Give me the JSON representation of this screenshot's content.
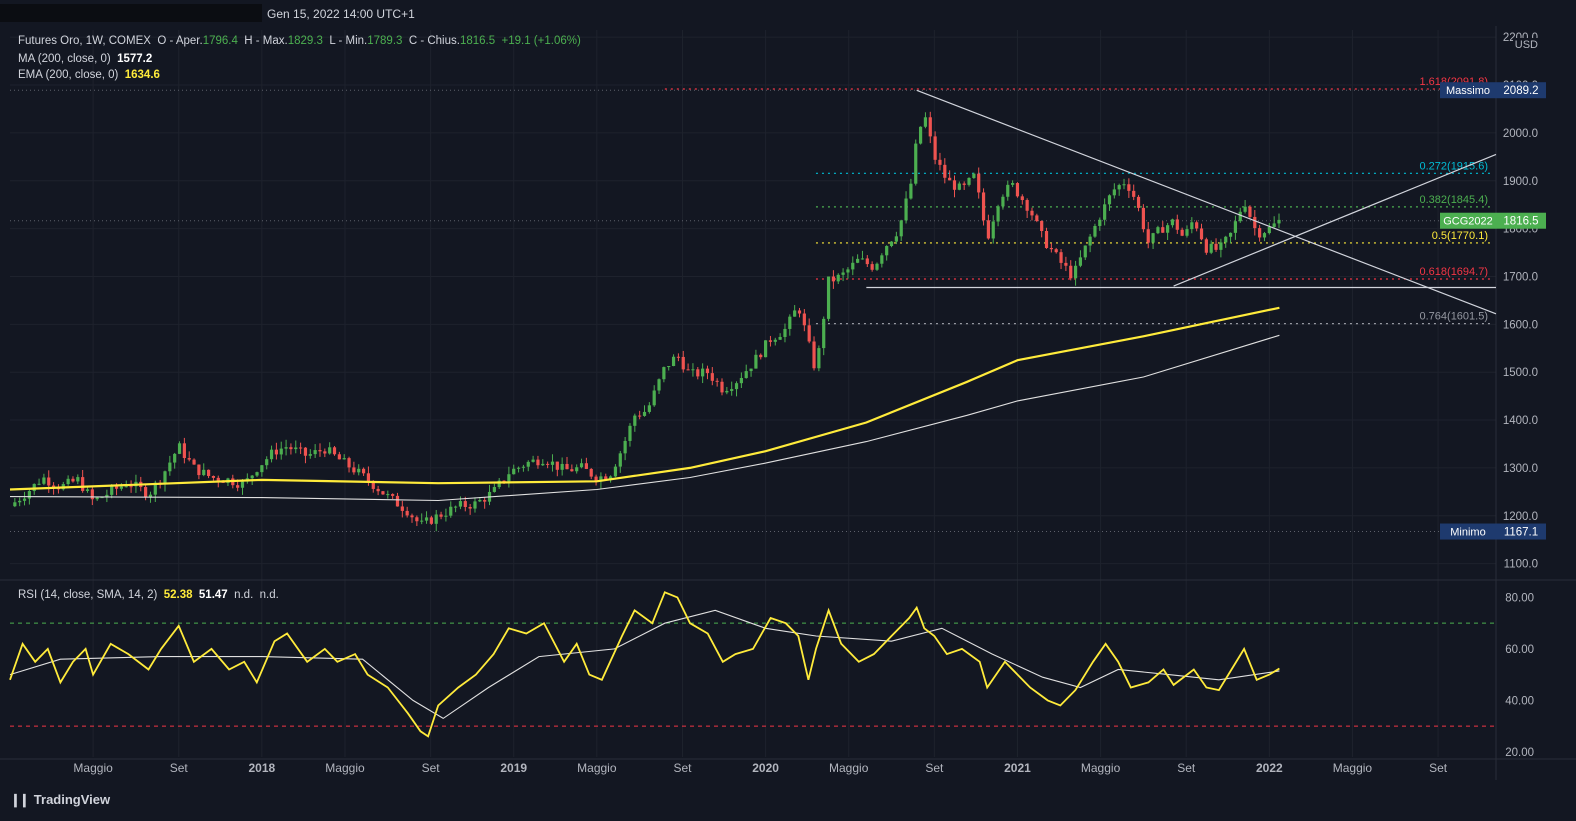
{
  "header": {
    "date": "Gen 15, 2022 14:00 UTC+1"
  },
  "legend": {
    "symbol": "Futures Oro, 1W, COMEX",
    "o_label": "O - Aper.",
    "o_value": "1796.4",
    "h_label": "H - Max.",
    "h_value": "1829.3",
    "l_label": "L - Min.",
    "l_value": "1789.3",
    "c_label": "C - Chius.",
    "c_value": "1816.5",
    "change": "+19.1 (+1.06%)",
    "ma_label": "MA (200, close, 0)",
    "ma_value": "1577.2",
    "ema_label": "EMA (200, close, 0)",
    "ema_value": "1634.6"
  },
  "rsi_legend": {
    "label": "RSI (14, close, SMA, 14, 2)",
    "v1": "52.38",
    "v2": "51.47",
    "v3": "n.d.",
    "v4": "n.d."
  },
  "brand": "TradingView",
  "colors": {
    "bg": "#131722",
    "up": "#4caf50",
    "down": "#ef5350",
    "ema": "#ffeb3b",
    "ma": "#e0e0e0",
    "rsi": "#ffeb3b",
    "grid": "#1e222d"
  },
  "chart_data": [
    {
      "type": "candlestick",
      "title": "Futures Oro, 1W, COMEX",
      "y_axis": {
        "unit": "USD",
        "ticks": [
          "1100.0",
          "1200.0",
          "1300.0",
          "1400.0",
          "1500.0",
          "1600.0",
          "1700.0",
          "1800.0",
          "1900.0",
          "2000.0",
          "2100.0",
          "2200.0"
        ],
        "ylim": [
          1070,
          2215
        ]
      },
      "x_axis": {
        "ticks": [
          {
            "label": "Maggio",
            "t": 2017.33
          },
          {
            "label": "Set",
            "t": 2017.67
          },
          {
            "label": "2018",
            "t": 2018.0
          },
          {
            "label": "Maggio",
            "t": 2018.33
          },
          {
            "label": "Set",
            "t": 2018.67
          },
          {
            "label": "2019",
            "t": 2019.0
          },
          {
            "label": "Maggio",
            "t": 2019.33
          },
          {
            "label": "Set",
            "t": 2019.67
          },
          {
            "label": "2020",
            "t": 2020.0
          },
          {
            "label": "Maggio",
            "t": 2020.33
          },
          {
            "label": "Set",
            "t": 2020.67
          },
          {
            "label": "2021",
            "t": 2021.0
          },
          {
            "label": "Maggio",
            "t": 2021.33
          },
          {
            "label": "Set",
            "t": 2021.67
          },
          {
            "label": "2022",
            "t": 2022.0
          },
          {
            "label": "Maggio",
            "t": 2022.33
          },
          {
            "label": "Set",
            "t": 2022.67
          }
        ],
        "xlim": [
          2017.0,
          2022.9
        ]
      },
      "price_path": [
        [
          2017.0,
          1220
        ],
        [
          2017.08,
          1255
        ],
        [
          2017.13,
          1280
        ],
        [
          2017.2,
          1260
        ],
        [
          2017.27,
          1275
        ],
        [
          2017.33,
          1230
        ],
        [
          2017.4,
          1250
        ],
        [
          2017.47,
          1270
        ],
        [
          2017.55,
          1245
        ],
        [
          2017.6,
          1280
        ],
        [
          2017.67,
          1345
        ],
        [
          2017.73,
          1300
        ],
        [
          2017.8,
          1280
        ],
        [
          2017.87,
          1275
        ],
        [
          2017.93,
          1265
        ],
        [
          2017.98,
          1300
        ],
        [
          2018.05,
          1335
        ],
        [
          2018.1,
          1345
        ],
        [
          2018.18,
          1325
        ],
        [
          2018.25,
          1340
        ],
        [
          2018.3,
          1320
        ],
        [
          2018.37,
          1295
        ],
        [
          2018.42,
          1275
        ],
        [
          2018.5,
          1240
        ],
        [
          2018.58,
          1210
        ],
        [
          2018.63,
          1180
        ],
        [
          2018.7,
          1200
        ],
        [
          2018.78,
          1220
        ],
        [
          2018.85,
          1225
        ],
        [
          2018.92,
          1250
        ],
        [
          2018.98,
          1290
        ],
        [
          2019.05,
          1310
        ],
        [
          2019.12,
          1320
        ],
        [
          2019.2,
          1295
        ],
        [
          2019.27,
          1300
        ],
        [
          2019.33,
          1280
        ],
        [
          2019.38,
          1285
        ],
        [
          2019.43,
          1340
        ],
        [
          2019.48,
          1410
        ],
        [
          2019.53,
          1420
        ],
        [
          2019.6,
          1510
        ],
        [
          2019.65,
          1535
        ],
        [
          2019.7,
          1495
        ],
        [
          2019.77,
          1500
        ],
        [
          2019.83,
          1465
        ],
        [
          2019.88,
          1480
        ],
        [
          2019.95,
          1520
        ],
        [
          2020.02,
          1570
        ],
        [
          2020.08,
          1590
        ],
        [
          2020.13,
          1640
        ],
        [
          2020.17,
          1560
        ],
        [
          2020.2,
          1500
        ],
        [
          2020.25,
          1690
        ],
        [
          2020.3,
          1700
        ],
        [
          2020.37,
          1735
        ],
        [
          2020.43,
          1720
        ],
        [
          2020.47,
          1760
        ],
        [
          2020.53,
          1800
        ],
        [
          2020.58,
          1900
        ],
        [
          2020.6,
          1985
        ],
        [
          2020.63,
          2040
        ],
        [
          2020.67,
          1950
        ],
        [
          2020.72,
          1900
        ],
        [
          2020.78,
          1880
        ],
        [
          2020.83,
          1910
        ],
        [
          2020.88,
          1780
        ],
        [
          2020.93,
          1870
        ],
        [
          2020.98,
          1890
        ],
        [
          2021.05,
          1840
        ],
        [
          2021.1,
          1780
        ],
        [
          2021.17,
          1730
        ],
        [
          2021.22,
          1700
        ],
        [
          2021.27,
          1760
        ],
        [
          2021.33,
          1830
        ],
        [
          2021.38,
          1880
        ],
        [
          2021.43,
          1900
        ],
        [
          2021.47,
          1860
        ],
        [
          2021.52,
          1770
        ],
        [
          2021.57,
          1800
        ],
        [
          2021.62,
          1815
        ],
        [
          2021.66,
          1780
        ],
        [
          2021.7,
          1820
        ],
        [
          2021.75,
          1760
        ],
        [
          2021.8,
          1755
        ],
        [
          2021.85,
          1790
        ],
        [
          2021.9,
          1860
        ],
        [
          2021.95,
          1790
        ],
        [
          2022.0,
          1800
        ],
        [
          2022.04,
          1816
        ]
      ],
      "ema": [
        [
          2017.0,
          1255
        ],
        [
          2018.0,
          1275
        ],
        [
          2018.7,
          1268
        ],
        [
          2019.33,
          1272
        ],
        [
          2019.7,
          1300
        ],
        [
          2020.0,
          1335
        ],
        [
          2020.4,
          1395
        ],
        [
          2020.8,
          1480
        ],
        [
          2021.0,
          1525
        ],
        [
          2021.5,
          1575
        ],
        [
          2022.04,
          1634.6
        ]
      ],
      "ma": [
        [
          2017.0,
          1240
        ],
        [
          2018.0,
          1238
        ],
        [
          2018.7,
          1232
        ],
        [
          2019.33,
          1255
        ],
        [
          2019.7,
          1280
        ],
        [
          2020.0,
          1310
        ],
        [
          2020.4,
          1355
        ],
        [
          2020.8,
          1410
        ],
        [
          2021.0,
          1440
        ],
        [
          2021.5,
          1490
        ],
        [
          2022.04,
          1577.2
        ]
      ],
      "fib_levels": [
        {
          "label": "1.618(2091.8)",
          "value": 2091.8,
          "color": "#f23645"
        },
        {
          "label": "0.272(1915.6)",
          "value": 1915.6,
          "color": "#00bcd4"
        },
        {
          "label": "0.382(1845.4)",
          "value": 1845.4,
          "color": "#4caf50"
        },
        {
          "label": "0.5(1770.1)",
          "value": 1770.1,
          "color": "#ffeb3b"
        },
        {
          "label": "0.618(1694.7)",
          "value": 1694.7,
          "color": "#f23645"
        },
        {
          "label": "0.764(1601.5)",
          "value": 1601.5,
          "color": "#9598a1"
        }
      ],
      "markers": [
        {
          "label": "Massimo",
          "value": "2089.2",
          "y": 2089.2
        },
        {
          "label": "Minimo",
          "value": "1167.1",
          "y": 1167.1
        },
        {
          "label": "GCG2022",
          "value": "1816.5",
          "y": 1816.5
        }
      ],
      "trendlines": [
        {
          "from": [
            2020.6,
            2089
          ],
          "to": [
            2022.9,
            1622
          ]
        },
        {
          "from": [
            2021.62,
            1680
          ],
          "to": [
            2022.9,
            1955
          ]
        },
        {
          "from": [
            2020.4,
            1677
          ],
          "to": [
            2022.9,
            1677
          ]
        }
      ]
    },
    {
      "type": "line",
      "title": "RSI (14, close, SMA, 14, 2)",
      "y_axis": {
        "ticks": [
          "20.00",
          "40.00",
          "60.00",
          "80.00"
        ],
        "ylim": [
          18,
          86
        ]
      },
      "bands": [
        70,
        30
      ],
      "rsi": [
        [
          2017.0,
          48
        ],
        [
          2017.05,
          62
        ],
        [
          2017.1,
          55
        ],
        [
          2017.15,
          60
        ],
        [
          2017.2,
          47
        ],
        [
          2017.25,
          55
        ],
        [
          2017.3,
          60
        ],
        [
          2017.33,
          50
        ],
        [
          2017.4,
          62
        ],
        [
          2017.47,
          58
        ],
        [
          2017.55,
          52
        ],
        [
          2017.6,
          60
        ],
        [
          2017.67,
          69
        ],
        [
          2017.73,
          55
        ],
        [
          2017.8,
          60
        ],
        [
          2017.87,
          52
        ],
        [
          2017.93,
          55
        ],
        [
          2017.98,
          47
        ],
        [
          2018.05,
          63
        ],
        [
          2018.1,
          66
        ],
        [
          2018.18,
          55
        ],
        [
          2018.25,
          60
        ],
        [
          2018.3,
          55
        ],
        [
          2018.37,
          58
        ],
        [
          2018.42,
          50
        ],
        [
          2018.5,
          45
        ],
        [
          2018.58,
          35
        ],
        [
          2018.63,
          28
        ],
        [
          2018.66,
          26
        ],
        [
          2018.7,
          38
        ],
        [
          2018.78,
          45
        ],
        [
          2018.85,
          50
        ],
        [
          2018.92,
          58
        ],
        [
          2018.98,
          68
        ],
        [
          2019.05,
          66
        ],
        [
          2019.12,
          70
        ],
        [
          2019.2,
          55
        ],
        [
          2019.25,
          62
        ],
        [
          2019.3,
          50
        ],
        [
          2019.35,
          48
        ],
        [
          2019.43,
          65
        ],
        [
          2019.48,
          75
        ],
        [
          2019.55,
          70
        ],
        [
          2019.6,
          82
        ],
        [
          2019.65,
          80
        ],
        [
          2019.7,
          70
        ],
        [
          2019.77,
          66
        ],
        [
          2019.83,
          55
        ],
        [
          2019.88,
          58
        ],
        [
          2019.95,
          60
        ],
        [
          2020.02,
          72
        ],
        [
          2020.08,
          70
        ],
        [
          2020.13,
          65
        ],
        [
          2020.17,
          48
        ],
        [
          2020.2,
          60
        ],
        [
          2020.25,
          75
        ],
        [
          2020.3,
          62
        ],
        [
          2020.37,
          55
        ],
        [
          2020.43,
          58
        ],
        [
          2020.5,
          65
        ],
        [
          2020.57,
          72
        ],
        [
          2020.6,
          76
        ],
        [
          2020.63,
          68
        ],
        [
          2020.67,
          65
        ],
        [
          2020.72,
          58
        ],
        [
          2020.78,
          60
        ],
        [
          2020.85,
          55
        ],
        [
          2020.88,
          45
        ],
        [
          2020.95,
          55
        ],
        [
          2021.0,
          50
        ],
        [
          2021.05,
          45
        ],
        [
          2021.12,
          40
        ],
        [
          2021.17,
          38
        ],
        [
          2021.23,
          44
        ],
        [
          2021.3,
          55
        ],
        [
          2021.35,
          62
        ],
        [
          2021.4,
          55
        ],
        [
          2021.45,
          45
        ],
        [
          2021.52,
          47
        ],
        [
          2021.58,
          52
        ],
        [
          2021.62,
          46
        ],
        [
          2021.7,
          52
        ],
        [
          2021.75,
          45
        ],
        [
          2021.8,
          44
        ],
        [
          2021.85,
          52
        ],
        [
          2021.9,
          60
        ],
        [
          2021.95,
          48
        ],
        [
          2022.0,
          50
        ],
        [
          2022.04,
          52.38
        ]
      ],
      "rsi_ma": [
        [
          2017.0,
          50
        ],
        [
          2017.2,
          56
        ],
        [
          2017.6,
          57
        ],
        [
          2018.0,
          57
        ],
        [
          2018.4,
          56
        ],
        [
          2018.6,
          40
        ],
        [
          2018.72,
          33
        ],
        [
          2018.9,
          45
        ],
        [
          2019.1,
          57
        ],
        [
          2019.4,
          60
        ],
        [
          2019.6,
          70
        ],
        [
          2019.8,
          75
        ],
        [
          2020.0,
          68
        ],
        [
          2020.2,
          65
        ],
        [
          2020.5,
          63
        ],
        [
          2020.7,
          68
        ],
        [
          2020.9,
          58
        ],
        [
          2021.1,
          49
        ],
        [
          2021.25,
          45
        ],
        [
          2021.4,
          52
        ],
        [
          2021.6,
          50
        ],
        [
          2021.8,
          48
        ],
        [
          2022.04,
          51.47
        ]
      ]
    }
  ]
}
